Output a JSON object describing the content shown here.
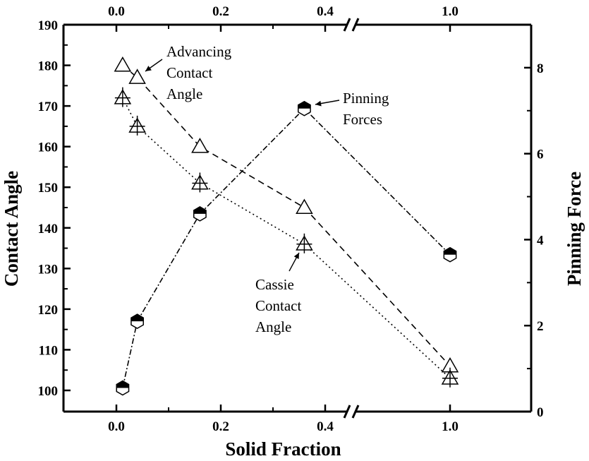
{
  "chart_data": {
    "type": "scatter",
    "xlabel": "Solid Fraction",
    "ylabel": "Contact Angle",
    "y2label": "Pinning Force",
    "axis_break": "between 0.4 and 1.0",
    "x_tick_labels": [
      "0.0",
      "0.2",
      "0.4",
      "1.0"
    ],
    "x_tick_values": [
      0.0,
      0.2,
      0.4,
      1.0
    ],
    "ylim": [
      97,
      190
    ],
    "y_ticks": [
      100,
      110,
      120,
      130,
      140,
      150,
      160,
      170,
      180,
      190
    ],
    "y2lim": [
      0,
      9
    ],
    "y2_ticks": [
      0,
      2,
      4,
      6,
      8
    ],
    "series": [
      {
        "name": "Advancing Contact Angle",
        "axis": "left",
        "marker": "open-triangle",
        "line": "dashed",
        "x": [
          0.012,
          0.04,
          0.16,
          0.36,
          1.0
        ],
        "y": [
          180,
          177,
          160,
          145,
          106
        ]
      },
      {
        "name": "Cassie Contact Angle",
        "axis": "left",
        "marker": "triangle-cross",
        "line": "dotted",
        "x": [
          0.012,
          0.04,
          0.16,
          0.36,
          1.0
        ],
        "y": [
          172,
          165,
          151,
          136,
          103
        ]
      },
      {
        "name": "Pinning Forces",
        "axis": "right",
        "marker": "half-filled-hexagon",
        "line": "dash-dot",
        "x": [
          0.012,
          0.04,
          0.16,
          0.36,
          1.0
        ],
        "y": [
          0.55,
          2.1,
          4.6,
          7.05,
          3.65
        ]
      }
    ],
    "annotations": [
      {
        "lines": [
          "Advancing",
          "Contact",
          "Angle"
        ]
      },
      {
        "lines": [
          "Pinning",
          "Forces"
        ]
      },
      {
        "lines": [
          "Cassie",
          "Contact",
          "Angle"
        ]
      }
    ]
  }
}
